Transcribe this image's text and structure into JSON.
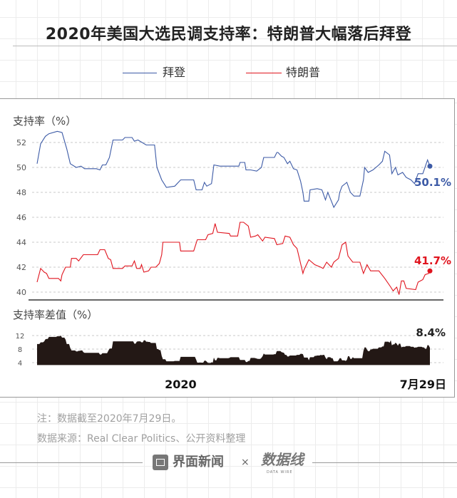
{
  "title": "2020年美国大选民调支持率：特朗普大幅落后拜登",
  "notes": [
    "注：数据截至2020年7月29日。",
    "数据来源：Real Clear Politics、公开资料整理"
  ],
  "footer": {
    "brand": "界面新闻",
    "separator": "×",
    "partner_logo": "数据线",
    "partner_logo_sub": "DATA WIRE"
  },
  "colors": {
    "biden": "#3c5aa6",
    "trump": "#e0141e",
    "spread": "#231815"
  },
  "chart_data": [
    {
      "type": "line",
      "ylabel": "支持率（%）",
      "ylim": [
        39.4,
        53.2
      ],
      "yticks": [
        40,
        42,
        44,
        46,
        48,
        50,
        52
      ],
      "xlim": [
        "2019-09-02",
        "2020-07-29"
      ],
      "xtick_labels": [
        {
          "date": "2020-01-01",
          "label": "2020"
        },
        {
          "date": "2020-07-29",
          "label": "7月29日"
        }
      ],
      "grid": true,
      "legend": "top",
      "series": [
        {
          "name": "拜登",
          "end_label": "50.1%",
          "points": [
            [
              "2019-09-02",
              50.3
            ],
            [
              "2019-09-05",
              51.9
            ],
            [
              "2019-09-09",
              52.5
            ],
            [
              "2019-09-12",
              52.7
            ],
            [
              "2019-09-19",
              52.9
            ],
            [
              "2019-09-23",
              52.8
            ],
            [
              "2019-09-27",
              51.5
            ],
            [
              "2019-09-30",
              50.3
            ],
            [
              "2019-10-05",
              50.0
            ],
            [
              "2019-10-09",
              50.1
            ],
            [
              "2019-10-12",
              49.9
            ],
            [
              "2019-10-22",
              49.9
            ],
            [
              "2019-10-25",
              49.8
            ],
            [
              "2019-10-27",
              50.2
            ],
            [
              "2019-10-30",
              50.2
            ],
            [
              "2019-11-02",
              50.8
            ],
            [
              "2019-11-05",
              52.2
            ],
            [
              "2019-11-13",
              52.2
            ],
            [
              "2019-11-15",
              52.4
            ],
            [
              "2019-11-21",
              52.4
            ],
            [
              "2019-11-23",
              52.1
            ],
            [
              "2019-11-26",
              52.2
            ],
            [
              "2019-12-03",
              51.8
            ],
            [
              "2019-12-10",
              51.8
            ],
            [
              "2019-12-12",
              50.0
            ],
            [
              "2019-12-16",
              49.0
            ],
            [
              "2019-12-20",
              48.4
            ],
            [
              "2019-12-27",
              48.5
            ],
            [
              "2020-01-01",
              49.0
            ],
            [
              "2020-01-12",
              49.0
            ],
            [
              "2020-01-14",
              48.2
            ],
            [
              "2020-01-19",
              48.2
            ],
            [
              "2020-01-21",
              48.8
            ],
            [
              "2020-01-23",
              48.5
            ],
            [
              "2020-01-27",
              48.7
            ],
            [
              "2020-01-29",
              50.2
            ],
            [
              "2020-02-03",
              50.1
            ],
            [
              "2020-02-19",
              50.1
            ],
            [
              "2020-02-20",
              50.4
            ],
            [
              "2020-02-24",
              50.4
            ],
            [
              "2020-02-25",
              49.8
            ],
            [
              "2020-02-29",
              49.8
            ],
            [
              "2020-03-05",
              49.7
            ],
            [
              "2020-03-09",
              50.0
            ],
            [
              "2020-03-11",
              50.8
            ],
            [
              "2020-03-20",
              50.8
            ],
            [
              "2020-03-22",
              51.2
            ],
            [
              "2020-03-23",
              51.2
            ],
            [
              "2020-03-26",
              50.9
            ],
            [
              "2020-03-28",
              50.8
            ],
            [
              "2020-03-31",
              50.3
            ],
            [
              "2020-04-02",
              50.5
            ],
            [
              "2020-04-05",
              49.9
            ],
            [
              "2020-04-08",
              49.8
            ],
            [
              "2020-04-11",
              48.9
            ],
            [
              "2020-04-13",
              48.0
            ],
            [
              "2020-04-14",
              47.3
            ],
            [
              "2020-04-18",
              47.3
            ],
            [
              "2020-04-19",
              48.2
            ],
            [
              "2020-04-25",
              48.3
            ],
            [
              "2020-04-29",
              48.2
            ],
            [
              "2020-05-02",
              47.4
            ],
            [
              "2020-05-04",
              48.0
            ],
            [
              "2020-05-07",
              47.3
            ],
            [
              "2020-05-09",
              46.8
            ],
            [
              "2020-05-13",
              47.4
            ],
            [
              "2020-05-14",
              48.0
            ],
            [
              "2020-05-16",
              48.5
            ],
            [
              "2020-05-20",
              48.8
            ],
            [
              "2020-05-23",
              48.0
            ],
            [
              "2020-05-26",
              47.7
            ],
            [
              "2020-05-31",
              47.7
            ],
            [
              "2020-06-03",
              49.0
            ],
            [
              "2020-06-04",
              50.0
            ],
            [
              "2020-06-07",
              49.6
            ],
            [
              "2020-06-11",
              49.8
            ],
            [
              "2020-06-16",
              50.2
            ],
            [
              "2020-06-19",
              50.5
            ],
            [
              "2020-06-21",
              51.3
            ],
            [
              "2020-06-25",
              51.0
            ],
            [
              "2020-06-27",
              49.5
            ],
            [
              "2020-06-30",
              50.0
            ],
            [
              "2020-07-02",
              49.4
            ],
            [
              "2020-07-06",
              49.6
            ],
            [
              "2020-07-09",
              49.2
            ],
            [
              "2020-07-13",
              49.0
            ],
            [
              "2020-07-16",
              48.7
            ],
            [
              "2020-07-19",
              49.5
            ],
            [
              "2020-07-23",
              49.5
            ],
            [
              "2020-07-27",
              50.6
            ],
            [
              "2020-07-29",
              50.1
            ]
          ]
        },
        {
          "name": "特朗普",
          "end_label": "41.7%",
          "points": [
            [
              "2019-09-02",
              40.8
            ],
            [
              "2019-09-05",
              41.9
            ],
            [
              "2019-09-08",
              41.6
            ],
            [
              "2019-09-10",
              41.5
            ],
            [
              "2019-09-12",
              41.1
            ],
            [
              "2019-09-20",
              41.1
            ],
            [
              "2019-09-22",
              40.9
            ],
            [
              "2019-09-23",
              41.4
            ],
            [
              "2019-09-26",
              42.0
            ],
            [
              "2019-09-30",
              42.0
            ],
            [
              "2019-10-01",
              42.7
            ],
            [
              "2019-10-05",
              42.7
            ],
            [
              "2019-10-07",
              42.5
            ],
            [
              "2019-10-11",
              43.0
            ],
            [
              "2019-10-23",
              43.0
            ],
            [
              "2019-10-25",
              43.4
            ],
            [
              "2019-10-29",
              43.4
            ],
            [
              "2019-11-01",
              42.7
            ],
            [
              "2019-11-03",
              42.6
            ],
            [
              "2019-11-05",
              41.9
            ],
            [
              "2019-11-13",
              41.9
            ],
            [
              "2019-11-15",
              42.1
            ],
            [
              "2019-11-21",
              42.1
            ],
            [
              "2019-11-23",
              42.5
            ],
            [
              "2019-11-25",
              41.9
            ],
            [
              "2019-11-28",
              41.9
            ],
            [
              "2019-11-29",
              42.2
            ],
            [
              "2019-12-01",
              41.6
            ],
            [
              "2019-12-05",
              41.7
            ],
            [
              "2019-12-07",
              42.0
            ],
            [
              "2019-12-11",
              42.0
            ],
            [
              "2019-12-14",
              42.3
            ],
            [
              "2019-12-16",
              43.0
            ],
            [
              "2019-12-17",
              44.0
            ],
            [
              "2019-12-31",
              44.0
            ],
            [
              "2020-01-01",
              43.3
            ],
            [
              "2020-01-12",
              43.3
            ],
            [
              "2020-01-15",
              44.2
            ],
            [
              "2020-01-22",
              44.2
            ],
            [
              "2020-01-24",
              44.6
            ],
            [
              "2020-01-28",
              44.7
            ],
            [
              "2020-01-30",
              45.5
            ],
            [
              "2020-02-01",
              44.8
            ],
            [
              "2020-02-11",
              44.7
            ],
            [
              "2020-02-12",
              44.5
            ],
            [
              "2020-02-18",
              44.5
            ],
            [
              "2020-02-20",
              45.6
            ],
            [
              "2020-02-23",
              45.6
            ],
            [
              "2020-02-27",
              45.3
            ],
            [
              "2020-02-29",
              44.4
            ],
            [
              "2020-03-04",
              44.5
            ],
            [
              "2020-03-06",
              44.6
            ],
            [
              "2020-03-10",
              44.1
            ],
            [
              "2020-03-12",
              44.4
            ],
            [
              "2020-03-20",
              44.3
            ],
            [
              "2020-03-22",
              43.8
            ],
            [
              "2020-03-27",
              43.9
            ],
            [
              "2020-03-29",
              44.5
            ],
            [
              "2020-04-02",
              44.4
            ],
            [
              "2020-04-05",
              43.8
            ],
            [
              "2020-04-08",
              43.5
            ],
            [
              "2020-04-11",
              42.3
            ],
            [
              "2020-04-13",
              41.5
            ],
            [
              "2020-04-14",
              41.8
            ],
            [
              "2020-04-18",
              42.6
            ],
            [
              "2020-04-23",
              42.2
            ],
            [
              "2020-04-28",
              42.0
            ],
            [
              "2020-04-30",
              41.9
            ],
            [
              "2020-05-03",
              42.4
            ],
            [
              "2020-05-07",
              42.0
            ],
            [
              "2020-05-09",
              42.4
            ],
            [
              "2020-05-13",
              42.7
            ],
            [
              "2020-05-16",
              43.8
            ],
            [
              "2020-05-19",
              44.0
            ],
            [
              "2020-05-21",
              42.9
            ],
            [
              "2020-05-25",
              42.4
            ],
            [
              "2020-05-31",
              42.4
            ],
            [
              "2020-06-03",
              41.5
            ],
            [
              "2020-06-06",
              42.2
            ],
            [
              "2020-06-09",
              41.7
            ],
            [
              "2020-06-16",
              41.7
            ],
            [
              "2020-06-21",
              41.1
            ],
            [
              "2020-06-26",
              40.4
            ],
            [
              "2020-06-28",
              40.1
            ],
            [
              "2020-07-01",
              40.4
            ],
            [
              "2020-07-03",
              39.8
            ],
            [
              "2020-07-05",
              40.9
            ],
            [
              "2020-07-07",
              40.9
            ],
            [
              "2020-07-09",
              40.3
            ],
            [
              "2020-07-17",
              40.2
            ],
            [
              "2020-07-19",
              40.8
            ],
            [
              "2020-07-23",
              41.0
            ],
            [
              "2020-07-25",
              41.4
            ],
            [
              "2020-07-28",
              41.5
            ],
            [
              "2020-07-29",
              41.7
            ]
          ]
        }
      ]
    },
    {
      "type": "area",
      "ylabel": "支持率差值（%）",
      "ylim": [
        3.3,
        12
      ],
      "yticks": [
        4,
        8,
        12
      ],
      "derived_from": "拜登 − 特朗普",
      "end_label": "8.4%",
      "grid": true
    }
  ]
}
